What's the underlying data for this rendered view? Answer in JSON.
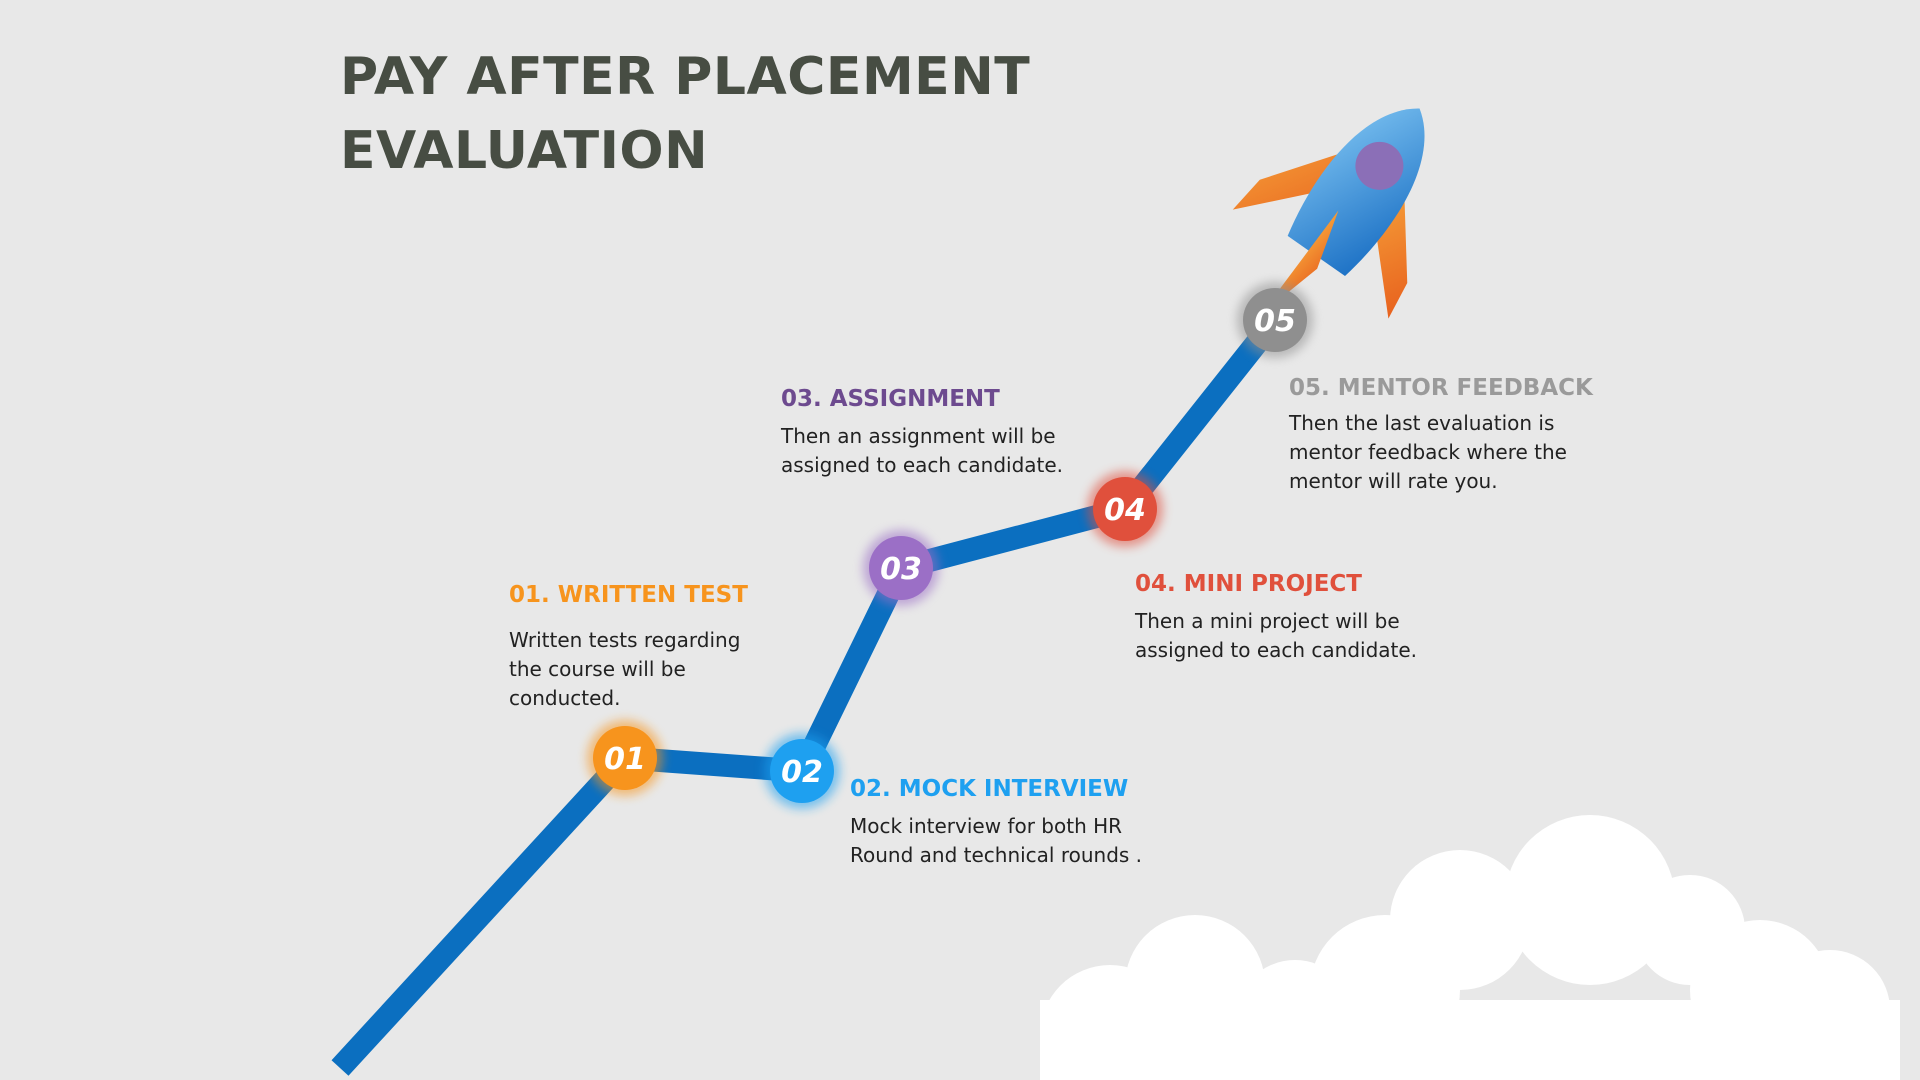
{
  "title": {
    "line1": "PAY AFTER PLACEMENT",
    "line2": "EVALUATION"
  },
  "path_color": "#0b6fc0",
  "steps": [
    {
      "num": "01",
      "title": "01. WRITTEN TEST",
      "desc": [
        "Written tests regarding",
        "the course will be",
        "conducted."
      ],
      "color": "#f7941d"
    },
    {
      "num": "02",
      "title": "02. MOCK INTERVIEW",
      "desc": [
        "Mock interview for both HR",
        "Round and technical rounds ."
      ],
      "color": "#1ea0f0"
    },
    {
      "num": "03",
      "title": "03. ASSIGNMENT",
      "desc": [
        "Then an assignment will be",
        "assigned to each candidate."
      ],
      "color": "#9b6fc6",
      "title_color": "#6d4a8f"
    },
    {
      "num": "04",
      "title": "04. MINI PROJECT",
      "desc": [
        "Then a mini project will be",
        "assigned to each candidate."
      ],
      "color": "#e0503c"
    },
    {
      "num": "05",
      "title": "05. MENTOR FEEDBACK",
      "desc": [
        "Then the last evaluation is",
        "mentor feedback where the",
        "mentor will rate you."
      ],
      "color": "#8f8f8f",
      "title_color": "#9a9a9a"
    }
  ],
  "icons": {
    "rocket": "rocket-icon",
    "cloud": "cloud-icon"
  }
}
